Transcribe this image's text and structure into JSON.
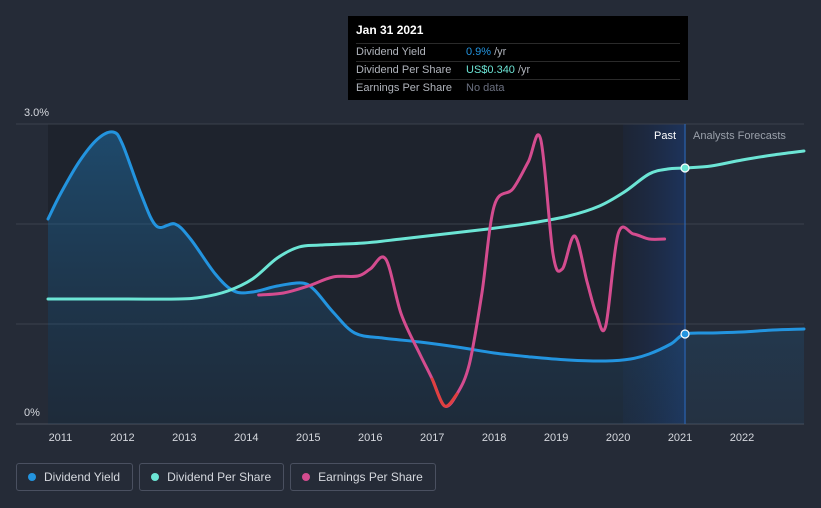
{
  "tooltip": {
    "date": "Jan 31 2021",
    "rows": [
      {
        "label": "Dividend Yield",
        "value": "0.9%",
        "unit": "/yr",
        "color": "#2394df"
      },
      {
        "label": "Dividend Per Share",
        "value": "US$0.340",
        "unit": "/yr",
        "color": "#6ce5d5"
      },
      {
        "label": "Earnings Per Share",
        "value": "No data",
        "unit": "",
        "color": "#6b7080"
      }
    ]
  },
  "legend": [
    {
      "label": "Dividend Yield",
      "color": "#2394df"
    },
    {
      "label": "Dividend Per Share",
      "color": "#6ce5d5"
    },
    {
      "label": "Earnings Per Share",
      "color": "#d44c8f"
    }
  ],
  "chart_data": {
    "type": "line",
    "y_tick_labels": [
      "3.0%",
      "0%"
    ],
    "ylim": [
      0,
      3.0
    ],
    "xlim": [
      2010.8,
      2023.0
    ],
    "x_ticks": [
      "2011",
      "2012",
      "2013",
      "2014",
      "2015",
      "2016",
      "2017",
      "2018",
      "2019",
      "2020",
      "2021",
      "2022"
    ],
    "past_label": "Past",
    "forecast_label": "Analysts Forecasts",
    "divider_x": 2021.08,
    "highlight_start": 2020.08,
    "grid": true,
    "series": [
      {
        "name": "Dividend Yield",
        "color": "#2394df",
        "area": true,
        "points": [
          [
            2010.8,
            2.05
          ],
          [
            2011.0,
            2.3
          ],
          [
            2011.3,
            2.62
          ],
          [
            2011.6,
            2.85
          ],
          [
            2011.85,
            2.92
          ],
          [
            2012.0,
            2.8
          ],
          [
            2012.3,
            2.3
          ],
          [
            2012.55,
            1.98
          ],
          [
            2012.85,
            2.0
          ],
          [
            2013.1,
            1.85
          ],
          [
            2013.5,
            1.5
          ],
          [
            2013.8,
            1.33
          ],
          [
            2014.1,
            1.32
          ],
          [
            2014.5,
            1.38
          ],
          [
            2014.9,
            1.41
          ],
          [
            2015.1,
            1.34
          ],
          [
            2015.4,
            1.12
          ],
          [
            2015.75,
            0.91
          ],
          [
            2016.2,
            0.86
          ],
          [
            2016.8,
            0.82
          ],
          [
            2017.4,
            0.77
          ],
          [
            2018.0,
            0.71
          ],
          [
            2018.6,
            0.67
          ],
          [
            2019.2,
            0.64
          ],
          [
            2019.8,
            0.63
          ],
          [
            2020.2,
            0.65
          ],
          [
            2020.5,
            0.7
          ],
          [
            2020.85,
            0.8
          ],
          [
            2021.08,
            0.9
          ],
          [
            2021.5,
            0.91
          ],
          [
            2022.0,
            0.92
          ],
          [
            2022.5,
            0.94
          ],
          [
            2023.0,
            0.95
          ]
        ]
      },
      {
        "name": "Dividend Per Share",
        "color": "#6ce5d5",
        "area": false,
        "points": [
          [
            2010.8,
            1.25
          ],
          [
            2012.0,
            1.25
          ],
          [
            2012.9,
            1.25
          ],
          [
            2013.3,
            1.27
          ],
          [
            2013.7,
            1.33
          ],
          [
            2014.1,
            1.45
          ],
          [
            2014.5,
            1.66
          ],
          [
            2014.85,
            1.77
          ],
          [
            2015.2,
            1.79
          ],
          [
            2015.9,
            1.81
          ],
          [
            2016.5,
            1.85
          ],
          [
            2017.2,
            1.9
          ],
          [
            2017.9,
            1.95
          ],
          [
            2018.6,
            2.01
          ],
          [
            2019.2,
            2.08
          ],
          [
            2019.7,
            2.18
          ],
          [
            2020.1,
            2.32
          ],
          [
            2020.5,
            2.5
          ],
          [
            2020.8,
            2.55
          ],
          [
            2021.08,
            2.56
          ],
          [
            2021.5,
            2.58
          ],
          [
            2022.0,
            2.64
          ],
          [
            2022.5,
            2.69
          ],
          [
            2023.0,
            2.73
          ]
        ]
      },
      {
        "name": "Earnings Per Share",
        "color": "#d44c8f",
        "low_color": "#e04040",
        "area": false,
        "points": [
          [
            2014.2,
            1.29
          ],
          [
            2014.6,
            1.31
          ],
          [
            2015.0,
            1.38
          ],
          [
            2015.4,
            1.47
          ],
          [
            2015.8,
            1.48
          ],
          [
            2016.0,
            1.55
          ],
          [
            2016.25,
            1.65
          ],
          [
            2016.5,
            1.1
          ],
          [
            2016.8,
            0.7
          ],
          [
            2017.0,
            0.45
          ],
          [
            2017.2,
            0.18
          ],
          [
            2017.4,
            0.3
          ],
          [
            2017.6,
            0.6
          ],
          [
            2017.8,
            1.3
          ],
          [
            2018.0,
            2.18
          ],
          [
            2018.3,
            2.35
          ],
          [
            2018.55,
            2.62
          ],
          [
            2018.75,
            2.85
          ],
          [
            2018.95,
            1.7
          ],
          [
            2019.1,
            1.55
          ],
          [
            2019.3,
            1.88
          ],
          [
            2019.5,
            1.42
          ],
          [
            2019.65,
            1.1
          ],
          [
            2019.8,
            0.98
          ],
          [
            2020.0,
            1.9
          ],
          [
            2020.25,
            1.9
          ],
          [
            2020.5,
            1.85
          ],
          [
            2020.75,
            1.85
          ]
        ]
      }
    ],
    "markers": [
      {
        "series": "Dividend Yield",
        "x": 2021.08,
        "y": 0.9
      },
      {
        "series": "Dividend Per Share",
        "x": 2021.08,
        "y": 2.56
      }
    ]
  }
}
